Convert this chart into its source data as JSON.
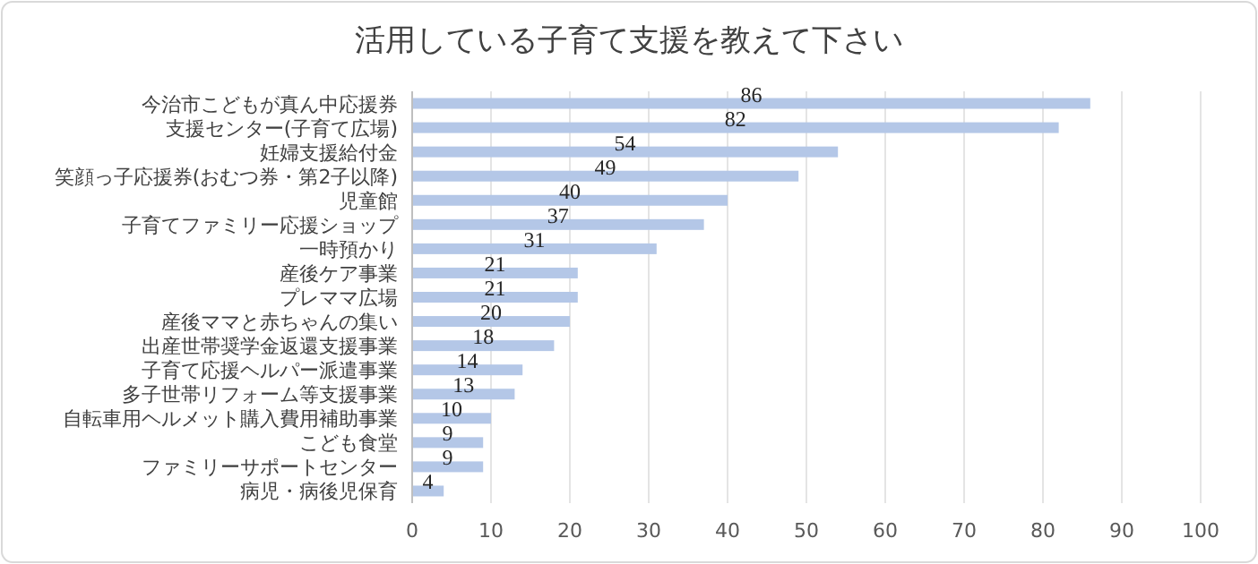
{
  "chart_data": {
    "type": "bar",
    "orientation": "horizontal",
    "title": "活用している子育て支援を教えて下さい",
    "categories": [
      "今治市こどもが真ん中応援券",
      "支援センター(子育て広場)",
      "妊婦支援給付金",
      "笑顔っ子応援券(おむつ券・第2子以降)",
      "児童館",
      "子育てファミリー応援ショップ",
      "一時預かり",
      "産後ケア事業",
      "プレママ広場",
      "産後ママと赤ちゃんの集い",
      "出産世帯奨学金返還支援事業",
      "子育て応援ヘルパー派遣事業",
      "多子世帯リフォーム等支援事業",
      "自転車用ヘルメット購入費用補助事業",
      "こども食堂",
      "ファミリーサポートセンター",
      "病児・病後児保育"
    ],
    "values": [
      86,
      82,
      54,
      49,
      40,
      37,
      31,
      21,
      21,
      20,
      18,
      14,
      13,
      10,
      9,
      9,
      4
    ],
    "color": "#b4c7e7",
    "xlim": [
      0,
      100
    ],
    "xticks": [
      0,
      10,
      20,
      30,
      40,
      50,
      60,
      70,
      80,
      90,
      100
    ],
    "grid": "x",
    "data_labels": true
  }
}
